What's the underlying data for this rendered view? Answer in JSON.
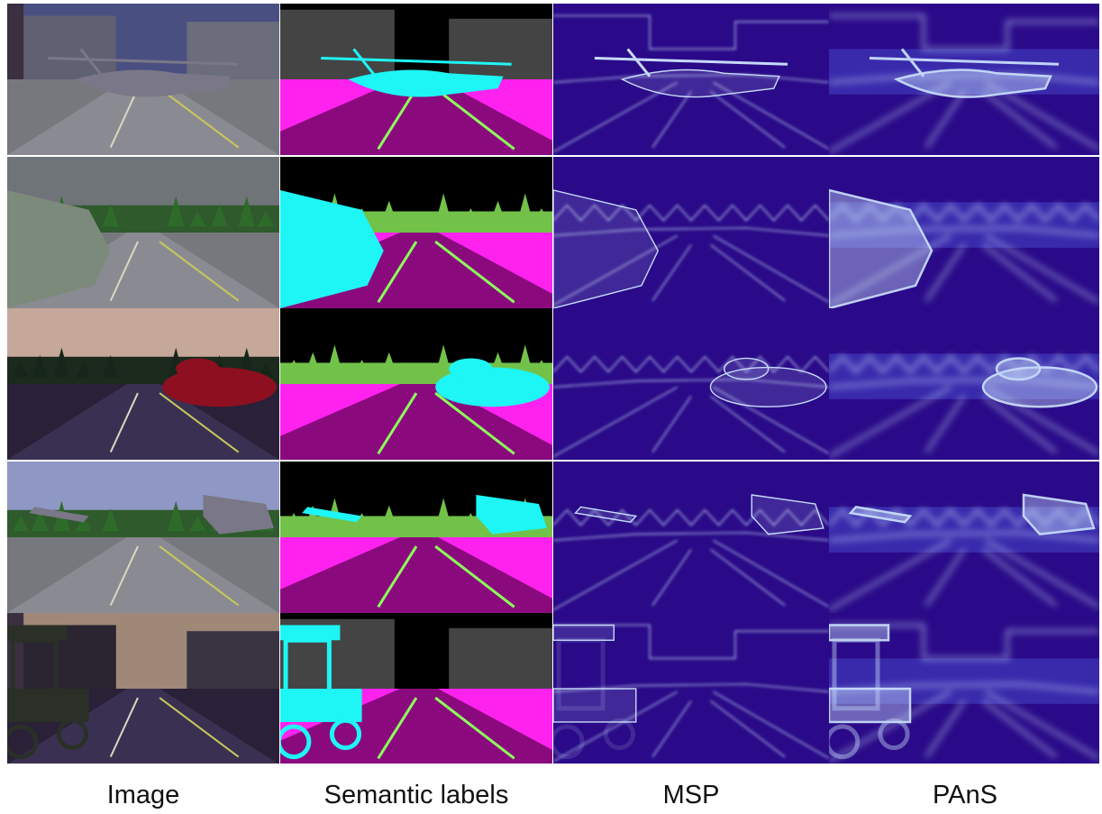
{
  "figure": {
    "columns": [
      {
        "key": "image",
        "label": "Image"
      },
      {
        "key": "semantic",
        "label": "Semantic labels"
      },
      {
        "key": "msp",
        "label": "MSP"
      },
      {
        "key": "pans",
        "label": "PAnS"
      }
    ],
    "rows": [
      {
        "scene": "helipad-street",
        "anomaly": "helicopter",
        "env": "city",
        "sky": "#4a4f82"
      },
      {
        "scene": "river-road",
        "anomaly": "ship",
        "env": "forest",
        "sky": "#6f7478"
      },
      {
        "scene": "dusk-forest-road",
        "anomaly": "red-vehicle",
        "env": "forest",
        "sky": "#c5a89a"
      },
      {
        "scene": "airplane-road",
        "anomaly": "airplane",
        "env": "forest",
        "sky": "#8f97c4"
      },
      {
        "scene": "night-street",
        "anomaly": "carriage",
        "env": "city",
        "sky": "#a08878"
      }
    ],
    "palette": {
      "road": "#8a0a7e",
      "sidewalk": "#ff22ee",
      "vegetation": "#72c24a",
      "building": "#444444",
      "sky": "#000000",
      "lane": "#8dff5a",
      "anomaly": "#1ef5f5",
      "heat_bg": "#2a0a88",
      "heat_hot": "#cfe6ff"
    }
  }
}
